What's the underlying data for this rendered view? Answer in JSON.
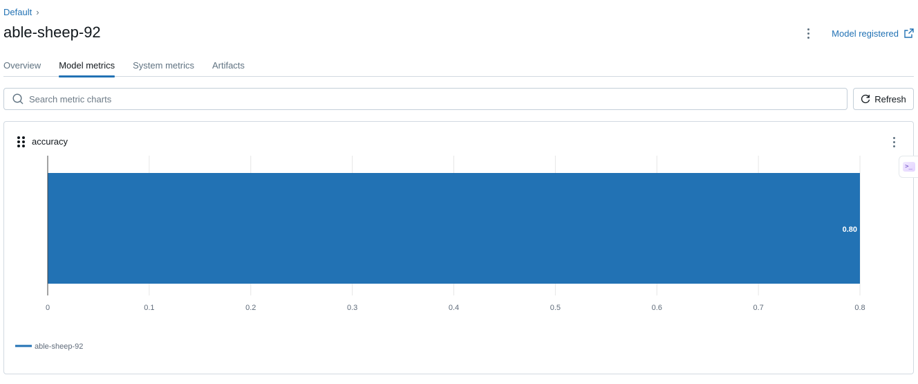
{
  "breadcrumb": {
    "parent": "Default",
    "separator": "›"
  },
  "run": {
    "title": "able-sheep-92"
  },
  "header": {
    "model_registered_label": "Model registered"
  },
  "tabs": [
    {
      "label": "Overview",
      "active": false
    },
    {
      "label": "Model metrics",
      "active": true
    },
    {
      "label": "System metrics",
      "active": false
    },
    {
      "label": "Artifacts",
      "active": false
    }
  ],
  "search": {
    "placeholder": "Search metric charts",
    "value": ""
  },
  "toolbar": {
    "refresh_label": "Refresh"
  },
  "colors": {
    "accent": "#2272b4",
    "bar": "#2272b4"
  },
  "icons": {
    "search": "search-icon",
    "refresh": "refresh-icon",
    "external": "external-link-icon",
    "drag": "drag-handle-icon",
    "kebab": "kebab-menu-icon"
  },
  "card": {
    "title": "accuracy"
  },
  "chart_data": {
    "type": "bar",
    "orientation": "horizontal",
    "title": "accuracy",
    "series": [
      {
        "name": "able-sheep-92",
        "values": [
          0.8
        ]
      }
    ],
    "value_labels": [
      "0.80"
    ],
    "xlim": [
      0,
      0.8
    ],
    "xticks": [
      "0",
      "0.1",
      "0.2",
      "0.3",
      "0.4",
      "0.5",
      "0.6",
      "0.7",
      "0.8"
    ],
    "grid": true,
    "legend": "bottom-left"
  }
}
